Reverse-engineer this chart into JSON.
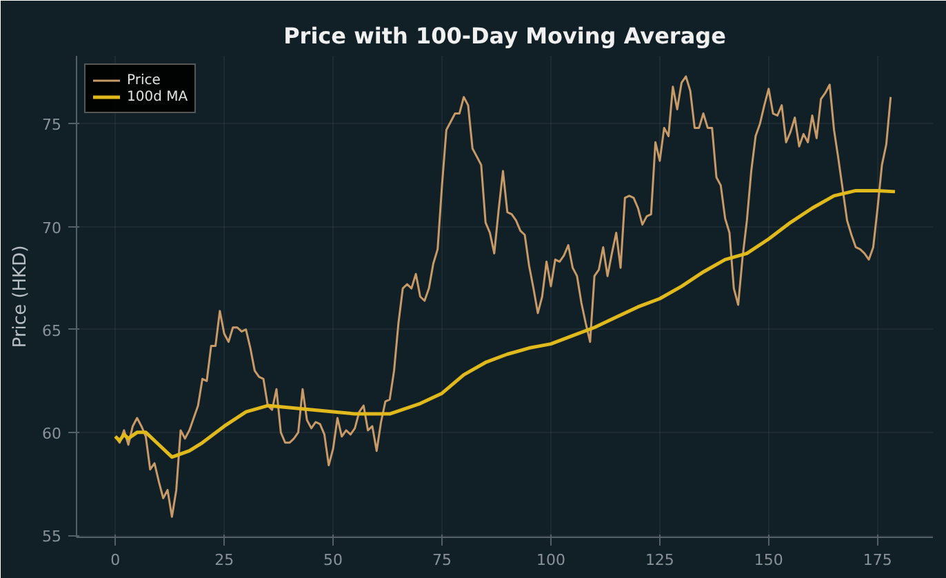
{
  "chart_data": {
    "type": "line",
    "title": "Price with 100-Day Moving Average",
    "ylabel": "Price (HKD)",
    "xlim": [
      -8.9,
      187.7
    ],
    "ylim": [
      54.9,
      78.3
    ],
    "xticks": [
      0,
      25,
      50,
      75,
      100,
      125,
      150,
      175
    ],
    "yticks": [
      55,
      60,
      65,
      70,
      75
    ],
    "grid": true,
    "legend": "top left",
    "line_style": "solid",
    "series": [
      {
        "name": "Price",
        "color": "#c89a68",
        "x": [
          0,
          1,
          2,
          3,
          4,
          5,
          6,
          7,
          8,
          9,
          10,
          11,
          12,
          13,
          14,
          15,
          16,
          17,
          18,
          19,
          20,
          21,
          22,
          23,
          24,
          25,
          26,
          27,
          28,
          29,
          30,
          31,
          32,
          33,
          34,
          35,
          36,
          37,
          38,
          39,
          40,
          41,
          42,
          43,
          44,
          45,
          46,
          47,
          48,
          49,
          50,
          51,
          52,
          53,
          54,
          55,
          56,
          57,
          58,
          59,
          60,
          61,
          62,
          63,
          64,
          65,
          66,
          67,
          68,
          69,
          70,
          71,
          72,
          73,
          74,
          75,
          76,
          77,
          78,
          79,
          80,
          81,
          82,
          83,
          84,
          85,
          86,
          87,
          88,
          89,
          90,
          91,
          92,
          93,
          94,
          95,
          96,
          97,
          98,
          99,
          100,
          101,
          102,
          103,
          104,
          105,
          106,
          107,
          108,
          109,
          110,
          111,
          112,
          113,
          114,
          115,
          116,
          117,
          118,
          119,
          120,
          121,
          122,
          123,
          124,
          125,
          126,
          127,
          128,
          129,
          130,
          131,
          132,
          133,
          134,
          135,
          136,
          137,
          138,
          139,
          140,
          141,
          142,
          143,
          144,
          145,
          146,
          147,
          148,
          149,
          150,
          151,
          152,
          153,
          154,
          155,
          156,
          157,
          158,
          159,
          160,
          161,
          162,
          163,
          164,
          165,
          166,
          167,
          168,
          169,
          170,
          171,
          172,
          173,
          174,
          175,
          176,
          177,
          178
        ],
        "values": [
          59.8,
          59.5,
          60.1,
          59.4,
          60.3,
          60.7,
          60.3,
          59.8,
          58.2,
          58.5,
          57.6,
          56.8,
          57.2,
          55.9,
          57.2,
          60.1,
          59.7,
          60.1,
          60.7,
          61.3,
          62.6,
          62.5,
          64.2,
          64.2,
          65.9,
          64.8,
          64.4,
          65.1,
          65.1,
          64.9,
          65.0,
          64.1,
          63.0,
          62.7,
          62.6,
          61.3,
          61.1,
          62.1,
          60.0,
          59.5,
          59.5,
          59.7,
          60.0,
          62.1,
          60.6,
          60.2,
          60.5,
          60.4,
          59.9,
          58.4,
          59.2,
          60.7,
          59.8,
          60.1,
          59.9,
          60.2,
          61.0,
          61.3,
          60.1,
          60.3,
          59.1,
          60.5,
          61.5,
          61.6,
          63.0,
          65.3,
          67.0,
          67.2,
          67.0,
          67.7,
          66.6,
          66.4,
          67.0,
          68.2,
          68.9,
          72.0,
          74.7,
          75.1,
          75.5,
          75.5,
          76.3,
          75.9,
          73.8,
          73.4,
          73.0,
          70.2,
          69.7,
          68.7,
          70.8,
          72.7,
          70.7,
          70.6,
          70.3,
          69.8,
          69.6,
          68.1,
          67.0,
          65.8,
          66.6,
          68.3,
          67.1,
          68.4,
          68.3,
          68.6,
          69.1,
          68.0,
          67.6,
          66.3,
          65.3,
          64.4,
          67.6,
          67.9,
          69.0,
          67.6,
          68.7,
          69.7,
          68.0,
          71.4,
          71.5,
          71.4,
          70.9,
          70.1,
          70.5,
          70.6,
          74.1,
          73.2,
          74.8,
          74.4,
          76.8,
          75.7,
          77.0,
          77.3,
          76.6,
          74.8,
          74.8,
          75.5,
          74.8,
          74.8,
          72.4,
          72.0,
          70.4,
          69.7,
          67.0,
          66.2,
          68.5,
          70.3,
          72.7,
          74.4,
          75.0,
          75.9,
          76.7,
          75.5,
          75.4,
          75.9,
          74.1,
          74.6,
          75.3,
          73.9,
          74.5,
          74.1,
          75.4,
          74.3,
          76.2,
          76.5,
          76.9,
          74.7,
          73.3,
          71.8,
          70.3,
          69.6,
          69.0,
          68.9,
          68.7,
          68.4,
          69.0,
          70.9,
          73.0,
          74.0,
          76.3
        ]
      },
      {
        "name": "100d MA",
        "color": "#e0b91c",
        "x": [
          0,
          1,
          2,
          3,
          5,
          7,
          10,
          13,
          17,
          20,
          25,
          30,
          35,
          40,
          45,
          50,
          55,
          60,
          63,
          70,
          75,
          80,
          85,
          90,
          95,
          100,
          105,
          110,
          115,
          120,
          125,
          130,
          135,
          140,
          145,
          150,
          155,
          160,
          165,
          170,
          175,
          179
        ],
        "values": [
          59.8,
          59.6,
          59.9,
          59.7,
          60.0,
          60.0,
          59.4,
          58.8,
          59.1,
          59.5,
          60.3,
          61.0,
          61.3,
          61.2,
          61.1,
          61.0,
          60.9,
          60.9,
          60.9,
          61.4,
          61.9,
          62.8,
          63.4,
          63.8,
          64.1,
          64.3,
          64.7,
          65.1,
          65.6,
          66.1,
          66.5,
          67.1,
          67.8,
          68.4,
          68.7,
          69.4,
          70.2,
          70.9,
          71.5,
          71.75,
          71.75,
          71.7
        ]
      }
    ]
  }
}
